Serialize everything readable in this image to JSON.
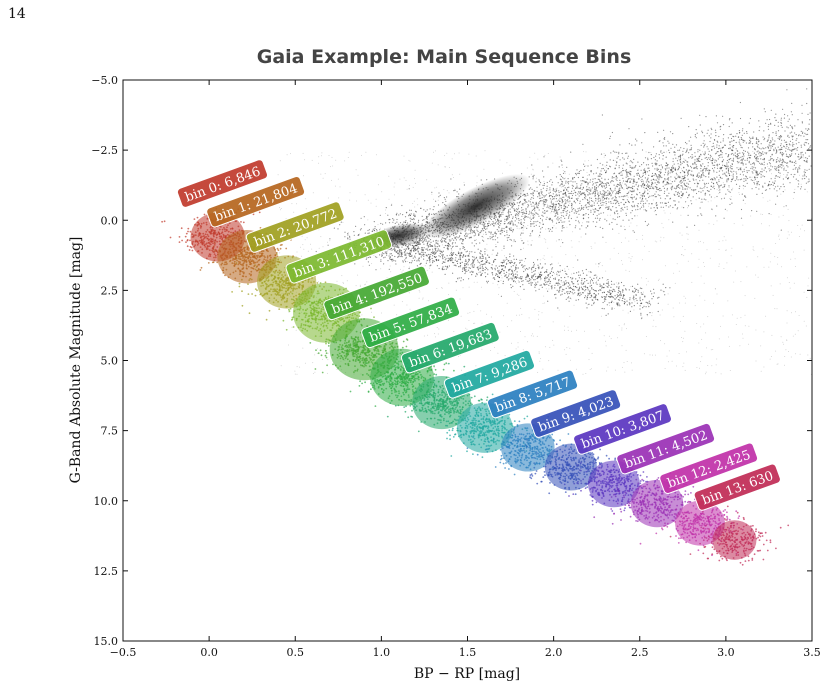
{
  "page_number": "14",
  "chart_data": {
    "type": "scatter",
    "title": "Gaia Example: Main Sequence Bins",
    "xlabel": "BP − RP [mag]",
    "ylabel": "G-Band Absolute Magnitude [mag]",
    "xlim": [
      -0.5,
      3.5
    ],
    "ylim": [
      15.0,
      -5.0
    ],
    "y_inverted": true,
    "grid": false,
    "x_ticks": [
      -0.5,
      0.0,
      0.5,
      1.0,
      1.5,
      2.0,
      2.5,
      3.0,
      3.5
    ],
    "x_tick_labels": [
      "−0.5",
      "0.0",
      "0.5",
      "1.0",
      "1.5",
      "2.0",
      "2.5",
      "3.0",
      "3.5"
    ],
    "y_ticks": [
      -5.0,
      -2.5,
      0.0,
      2.5,
      5.0,
      7.5,
      10.0,
      12.5,
      15.0
    ],
    "y_tick_labels": [
      "−5.0",
      "−2.5",
      "0.0",
      "2.5",
      "5.0",
      "7.5",
      "10.0",
      "12.5",
      "15.0"
    ],
    "background_color": "#333333",
    "bins": [
      {
        "label": "bin 0: 6,846",
        "count": 6846,
        "color": "#c0392b",
        "x": 0.05,
        "y": 0.6
      },
      {
        "label": "bin 1: 21,804",
        "count": 21804,
        "color": "#b5651d",
        "x": 0.22,
        "y": 1.3
      },
      {
        "label": "bin 2: 20,772",
        "count": 20772,
        "color": "#a0a020",
        "x": 0.45,
        "y": 2.2
      },
      {
        "label": "bin 3: 111,310",
        "count": 111310,
        "color": "#7cb82f",
        "x": 0.68,
        "y": 3.3
      },
      {
        "label": "bin 4: 192,550",
        "count": 192550,
        "color": "#44a832",
        "x": 0.9,
        "y": 4.6
      },
      {
        "label": "bin 5: 57,834",
        "count": 57834,
        "color": "#2eac44",
        "x": 1.12,
        "y": 5.6
      },
      {
        "label": "bin 6: 19,683",
        "count": 19683,
        "color": "#23a86a",
        "x": 1.35,
        "y": 6.5
      },
      {
        "label": "bin 7: 9,286",
        "count": 9286,
        "color": "#20a8a0",
        "x": 1.6,
        "y": 7.4
      },
      {
        "label": "bin 8: 5,717",
        "count": 5717,
        "color": "#2a7fc0",
        "x": 1.85,
        "y": 8.1
      },
      {
        "label": "bin 9: 4,023",
        "count": 4023,
        "color": "#3550b8",
        "x": 2.1,
        "y": 8.8
      },
      {
        "label": "bin 10: 3,807",
        "count": 3807,
        "color": "#5a35c0",
        "x": 2.35,
        "y": 9.4
      },
      {
        "label": "bin 11: 4,502",
        "count": 4502,
        "color": "#9a30b5",
        "x": 2.6,
        "y": 10.1
      },
      {
        "label": "bin 12: 2,425",
        "count": 2425,
        "color": "#c030a8",
        "x": 2.85,
        "y": 10.8
      },
      {
        "label": "bin 13: 630",
        "count": 630,
        "color": "#c02a55",
        "x": 3.05,
        "y": 11.4
      }
    ]
  }
}
